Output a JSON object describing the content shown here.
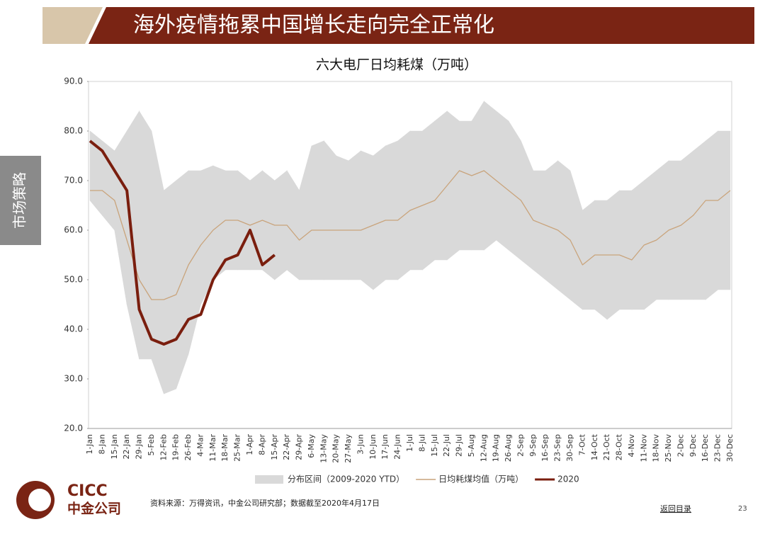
{
  "header": {
    "title": "海外疫情拖累中国增长走向完全正常化"
  },
  "side_tab": "市场策略",
  "logo": {
    "en": "CICC",
    "cn": "中金公司"
  },
  "footer": {
    "source": "资料来源：万得资讯，中金公司研究部；数据截至2020年4月17日",
    "link": "返回目录",
    "page": "23"
  },
  "chart_data": {
    "type": "line",
    "title": "六大电厂日均耗煤（万吨）",
    "categories": [
      "1-Jan",
      "8-Jan",
      "15-Jan",
      "22-Jan",
      "29-Jan",
      "5-Feb",
      "12-Feb",
      "19-Feb",
      "26-Feb",
      "4-Mar",
      "11-Mar",
      "18-Mar",
      "25-Mar",
      "1-Apr",
      "8-Apr",
      "15-Apr",
      "22-Apr",
      "29-Apr",
      "6-May",
      "13-May",
      "20-May",
      "27-May",
      "3-Jun",
      "10-Jun",
      "17-Jun",
      "24-Jun",
      "1-Jul",
      "8-Jul",
      "15-Jul",
      "22-Jul",
      "29-Jul",
      "5-Aug",
      "12-Aug",
      "19-Aug",
      "26-Aug",
      "2-Sep",
      "9-Sep",
      "16-Sep",
      "23-Sep",
      "30-Sep",
      "7-Oct",
      "14-Oct",
      "21-Oct",
      "28-Oct",
      "4-Nov",
      "11-Nov",
      "18-Nov",
      "25-Nov",
      "2-Dec",
      "9-Dec",
      "16-Dec",
      "23-Dec",
      "30-Dec"
    ],
    "series": [
      {
        "name": "分布区间（2009-2020 YTD）",
        "color": "#d9d9d9",
        "type": "band",
        "values": [
          80,
          78,
          76,
          80,
          84,
          80,
          68,
          70,
          72,
          72,
          73,
          72,
          72,
          70,
          72,
          70,
          72,
          68,
          77,
          78,
          75,
          74,
          76,
          75,
          77,
          78,
          80,
          80,
          82,
          84,
          82,
          82,
          86,
          84,
          82,
          78,
          72,
          72,
          74,
          72,
          64,
          66,
          66,
          68,
          68,
          70,
          72,
          74,
          74,
          76,
          78,
          80,
          80
        ],
        "low": [
          66,
          63,
          60,
          45,
          34,
          34,
          27,
          28,
          35,
          45,
          50,
          52,
          52,
          52,
          52,
          50,
          52,
          50,
          50,
          50,
          50,
          50,
          50,
          48,
          50,
          50,
          52,
          52,
          54,
          54,
          56,
          56,
          56,
          58,
          56,
          54,
          52,
          50,
          48,
          46,
          44,
          44,
          42,
          44,
          44,
          44,
          46,
          46,
          46,
          46,
          46,
          48,
          48
        ]
      },
      {
        "name": "日均耗煤均值（万吨）",
        "color": "#c9a47c",
        "values": [
          68,
          68,
          66,
          58,
          50,
          46,
          46,
          47,
          53,
          57,
          60,
          62,
          62,
          61,
          62,
          61,
          61,
          58,
          60,
          60,
          60,
          60,
          60,
          61,
          62,
          62,
          64,
          65,
          66,
          69,
          72,
          71,
          72,
          70,
          68,
          66,
          62,
          61,
          60,
          58,
          53,
          55,
          55,
          55,
          54,
          57,
          58,
          60,
          61,
          63,
          66,
          66,
          68
        ]
      },
      {
        "name": "2020",
        "color": "#7a1e0e",
        "values": [
          78,
          76,
          72,
          68,
          44,
          38,
          37,
          38,
          42,
          43,
          50,
          54,
          55,
          60,
          53,
          55,
          null,
          null,
          null,
          null,
          null,
          null,
          null,
          null,
          null,
          null,
          null,
          null,
          null,
          null,
          null,
          null,
          null,
          null,
          null,
          null,
          null,
          null,
          null,
          null,
          null,
          null,
          null,
          null,
          null,
          null,
          null,
          null,
          null,
          null,
          null,
          null,
          null
        ]
      }
    ],
    "ylim": [
      20,
      90
    ],
    "yticks": [
      {
        "value": 20,
        "label": "20.0"
      },
      {
        "value": 30,
        "label": "30.0"
      },
      {
        "value": 40,
        "label": "40.0"
      },
      {
        "value": 50,
        "label": "50.0"
      },
      {
        "value": 60,
        "label": "60.0"
      },
      {
        "value": 70,
        "label": "70.0"
      },
      {
        "value": 80,
        "label": "80.0"
      },
      {
        "value": 90,
        "label": "90.0"
      }
    ],
    "legend": "bottom"
  }
}
